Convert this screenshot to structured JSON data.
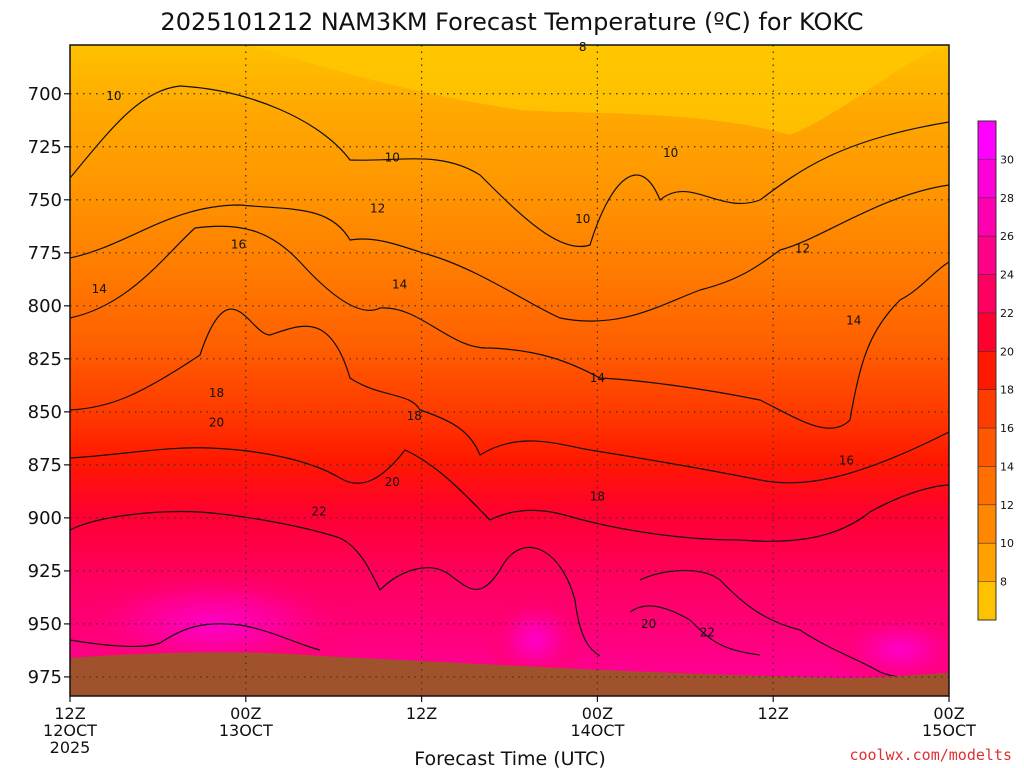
{
  "chart_data": {
    "type": "heatmap",
    "title": "2025101212 NAM3KM Forecast Temperature (ºC) for KOKC",
    "xlabel": "Forecast Time (UTC)",
    "ylabel": "",
    "credit": "coolwx.com/modelts",
    "y_axis": {
      "ticks": [
        700,
        725,
        750,
        775,
        800,
        825,
        850,
        875,
        900,
        925,
        950,
        975
      ],
      "range": [
        677,
        984
      ],
      "inverted": true
    },
    "x_axis": {
      "range_hours": [
        0,
        60
      ],
      "ticks": [
        {
          "hour": 0,
          "line1": "12Z",
          "line2": "12OCT",
          "line3": "2025"
        },
        {
          "hour": 12,
          "line1": "00Z",
          "line2": "13OCT",
          "line3": ""
        },
        {
          "hour": 24,
          "line1": "12Z",
          "line2": "",
          "line3": ""
        },
        {
          "hour": 36,
          "line1": "00Z",
          "line2": "14OCT",
          "line3": ""
        },
        {
          "hour": 48,
          "line1": "12Z",
          "line2": "",
          "line3": ""
        },
        {
          "hour": 60,
          "line1": "00Z",
          "line2": "15OCT",
          "line3": ""
        }
      ]
    },
    "colorbar": {
      "labels": [
        8,
        10,
        12,
        14,
        16,
        18,
        20,
        22,
        24,
        26,
        28,
        30
      ],
      "colors": [
        "#ffc200",
        "#ffa200",
        "#ff8800",
        "#ff7000",
        "#ff5800",
        "#ff3c00",
        "#ff1800",
        "#ff0030",
        "#ff0060",
        "#ff0088",
        "#ff00b0",
        "#ff00d8",
        "#ff00ff"
      ]
    },
    "contour_levels": [
      8,
      10,
      12,
      14,
      16,
      18,
      20,
      22
    ],
    "contour_labels": [
      {
        "hour": 3.0,
        "p": 701,
        "text": "10"
      },
      {
        "hour": 22.0,
        "p": 730,
        "text": "10"
      },
      {
        "hour": 35.0,
        "p": 678,
        "text": "8"
      },
      {
        "hour": 41.0,
        "p": 728,
        "text": "10"
      },
      {
        "hour": 35.0,
        "p": 759,
        "text": "10"
      },
      {
        "hour": 21.0,
        "p": 754,
        "text": "12"
      },
      {
        "hour": 50.0,
        "p": 773,
        "text": "12"
      },
      {
        "hour": 11.5,
        "p": 771,
        "text": "16"
      },
      {
        "hour": 2.0,
        "p": 792,
        "text": "14"
      },
      {
        "hour": 22.5,
        "p": 790,
        "text": "14"
      },
      {
        "hour": 53.5,
        "p": 807,
        "text": "14"
      },
      {
        "hour": 36.0,
        "p": 834,
        "text": "14"
      },
      {
        "hour": 10.0,
        "p": 841,
        "text": "18"
      },
      {
        "hour": 23.5,
        "p": 852,
        "text": "18"
      },
      {
        "hour": 10.0,
        "p": 855,
        "text": "20"
      },
      {
        "hour": 22.0,
        "p": 883,
        "text": "20"
      },
      {
        "hour": 36.0,
        "p": 890,
        "text": "18"
      },
      {
        "hour": 53.0,
        "p": 873,
        "text": "16"
      },
      {
        "hour": 17.0,
        "p": 897,
        "text": "22"
      },
      {
        "hour": 39.5,
        "p": 950,
        "text": "20"
      },
      {
        "hour": 43.5,
        "p": 954,
        "text": "22"
      }
    ],
    "terrain_surface_pressure": [
      {
        "hour": 0,
        "p": 966
      },
      {
        "hour": 6,
        "p": 963
      },
      {
        "hour": 12,
        "p": 963
      },
      {
        "hour": 18,
        "p": 965
      },
      {
        "hour": 24,
        "p": 966
      },
      {
        "hour": 30,
        "p": 968
      },
      {
        "hour": 36,
        "p": 970
      },
      {
        "hour": 42,
        "p": 972
      },
      {
        "hour": 48,
        "p": 973
      },
      {
        "hour": 54,
        "p": 974
      },
      {
        "hour": 60,
        "p": 972
      }
    ]
  }
}
